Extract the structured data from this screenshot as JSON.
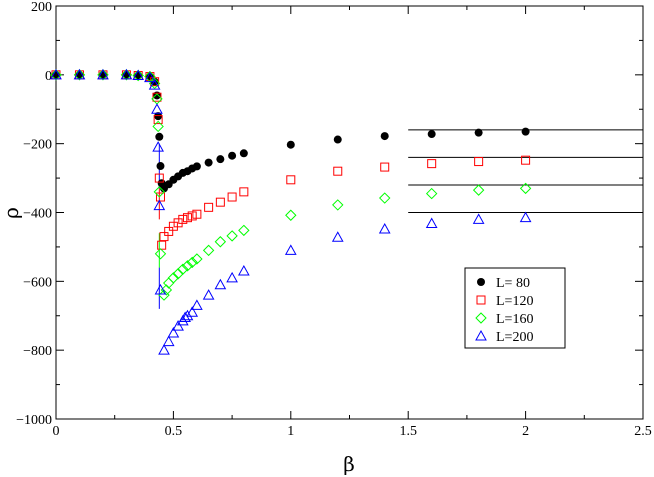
{
  "chart_data": {
    "type": "scatter",
    "title": "",
    "xlabel": "β",
    "ylabel": "ρ",
    "xlim": [
      0,
      2.5
    ],
    "ylim": [
      -1000,
      200
    ],
    "xticks": [
      0,
      0.5,
      1,
      1.5,
      2,
      2.5
    ],
    "xtick_labels": [
      "0",
      "0.5",
      "1",
      "1.5",
      "2",
      "2.5"
    ],
    "yticks": [
      -1000,
      -800,
      -600,
      -400,
      -200,
      0,
      200
    ],
    "ytick_labels": [
      "−1000",
      "−800",
      "−600",
      "−400",
      "−200",
      "0",
      "200"
    ],
    "grid": false,
    "legend_position": "bottom-right",
    "series": [
      {
        "name": "L= 80",
        "marker": "filled-circle",
        "color": "#000000",
        "x": [
          0,
          0.1,
          0.2,
          0.3,
          0.35,
          0.4,
          0.42,
          0.43,
          0.435,
          0.44,
          0.445,
          0.45,
          0.46,
          0.48,
          0.5,
          0.52,
          0.54,
          0.56,
          0.58,
          0.6,
          0.65,
          0.7,
          0.75,
          0.8,
          1.0,
          1.2,
          1.4,
          1.6,
          1.8,
          2.0
        ],
        "y": [
          0,
          0,
          0,
          0,
          -2,
          -5,
          -20,
          -60,
          -120,
          -180,
          -265,
          -315,
          -330,
          -318,
          -305,
          -295,
          -285,
          -280,
          -272,
          -266,
          -255,
          -245,
          -235,
          -228,
          -203,
          -188,
          -178,
          -172,
          -168,
          -165
        ]
      },
      {
        "name": "L=120",
        "marker": "open-square",
        "color": "#ff0000",
        "x": [
          0,
          0.1,
          0.2,
          0.3,
          0.35,
          0.4,
          0.42,
          0.43,
          0.435,
          0.44,
          0.445,
          0.45,
          0.46,
          0.48,
          0.5,
          0.52,
          0.54,
          0.56,
          0.58,
          0.6,
          0.65,
          0.7,
          0.75,
          0.8,
          1.0,
          1.2,
          1.4,
          1.6,
          1.8,
          2.0
        ],
        "y": [
          0,
          0,
          0,
          0,
          -2,
          -5,
          -20,
          -65,
          -130,
          -300,
          -355,
          -495,
          -470,
          -455,
          -440,
          -430,
          -420,
          -415,
          -410,
          -405,
          -385,
          -370,
          -355,
          -340,
          -305,
          -280,
          -268,
          -258,
          -252,
          -248
        ]
      },
      {
        "name": "L=160",
        "marker": "open-diamond",
        "color": "#00ff00",
        "x": [
          0,
          0.1,
          0.2,
          0.3,
          0.35,
          0.4,
          0.42,
          0.43,
          0.435,
          0.44,
          0.445,
          0.46,
          0.47,
          0.48,
          0.5,
          0.52,
          0.54,
          0.56,
          0.58,
          0.6,
          0.65,
          0.7,
          0.75,
          0.8,
          1.0,
          1.2,
          1.4,
          1.6,
          1.8,
          2.0
        ],
        "y": [
          0,
          0,
          0,
          0,
          -2,
          -5,
          -25,
          -70,
          -150,
          -340,
          -520,
          -640,
          -625,
          -605,
          -590,
          -578,
          -565,
          -555,
          -545,
          -535,
          -510,
          -485,
          -468,
          -452,
          -408,
          -378,
          -358,
          -345,
          -335,
          -330
        ]
      },
      {
        "name": "L=200",
        "marker": "open-triangle",
        "color": "#0000ff",
        "x": [
          0,
          0.1,
          0.2,
          0.3,
          0.35,
          0.4,
          0.42,
          0.43,
          0.435,
          0.44,
          0.445,
          0.46,
          0.48,
          0.5,
          0.52,
          0.54,
          0.55,
          0.56,
          0.58,
          0.6,
          0.65,
          0.7,
          0.75,
          0.8,
          1.0,
          1.2,
          1.4,
          1.6,
          1.8,
          2.0
        ],
        "y": [
          0,
          0,
          0,
          0,
          -2,
          -8,
          -30,
          -100,
          -210,
          -380,
          -625,
          -800,
          -775,
          -750,
          -730,
          -715,
          -705,
          -700,
          -690,
          -670,
          -640,
          -610,
          -590,
          -570,
          -510,
          -472,
          -448,
          -432,
          -420,
          -415
        ]
      }
    ],
    "error_bars": [
      {
        "x": 0.44,
        "y_low": -680,
        "y_high": -560,
        "color": "#0000ff"
      },
      {
        "x": 0.44,
        "y_low": -560,
        "y_high": -460,
        "color": "#00ff00"
      },
      {
        "x": 0.44,
        "y_low": -420,
        "y_high": -320,
        "color": "#ff0000"
      },
      {
        "x": 0.44,
        "y_low": -330,
        "y_high": -200,
        "color": "#0000ff"
      }
    ],
    "reference_lines": [
      {
        "x_start": 1.5,
        "x_end": 2.5,
        "y": -160
      },
      {
        "x_start": 1.5,
        "x_end": 2.5,
        "y": -240
      },
      {
        "x_start": 1.5,
        "x_end": 2.5,
        "y": -320
      },
      {
        "x_start": 1.5,
        "x_end": 2.5,
        "y": -400
      }
    ]
  }
}
